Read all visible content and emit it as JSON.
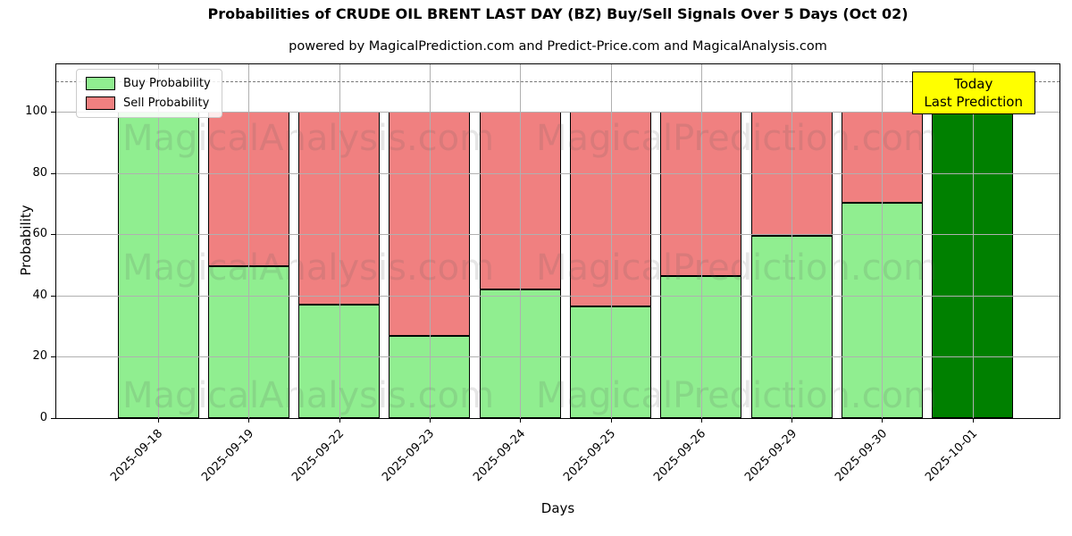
{
  "chart_data": {
    "type": "bar",
    "stacked": true,
    "title": "Probabilities of CRUDE OIL BRENT LAST DAY (BZ) Buy/Sell Signals Over 5 Days (Oct 02)",
    "subtitle": "powered by MagicalPrediction.com and Predict-Price.com and MagicalAnalysis.com",
    "xlabel": "Days",
    "ylabel": "Probability",
    "categories": [
      "2025-09-18",
      "2025-09-19",
      "2025-09-22",
      "2025-09-23",
      "2025-09-24",
      "2025-09-25",
      "2025-09-26",
      "2025-09-29",
      "2025-09-30",
      "2025-10-01"
    ],
    "series": [
      {
        "name": "Buy Probability",
        "color": "#90EE90",
        "values": [
          100,
          49.5,
          37,
          27,
          42,
          36.5,
          46.5,
          59.5,
          70.5,
          100
        ]
      },
      {
        "name": "Sell Probability",
        "color": "#F08080",
        "values": [
          0,
          50.5,
          63,
          73,
          58,
          63.5,
          53.5,
          40.5,
          29.5,
          0
        ]
      }
    ],
    "today_bar": {
      "index": 9,
      "category": "2025-10-01",
      "color": "#008000",
      "label": [
        "Today",
        "Last Prediction"
      ],
      "label_bg": "#FFFF00"
    },
    "yticks": [
      0,
      20,
      40,
      60,
      80,
      100
    ],
    "ylim": [
      0,
      115.6
    ],
    "reference_line": {
      "y": 110,
      "style": "dashed",
      "color": "#7a7a7a"
    },
    "grid": true,
    "grid_color": "#b0b0b0",
    "bar_edge_color": "#000000",
    "legend_position": "top-left",
    "watermarks": {
      "texts": [
        "MagicalAnalysis.com",
        "MagicalPrediction.com"
      ],
      "rows": 3,
      "color": "rgba(90,90,90,0.15)"
    }
  }
}
